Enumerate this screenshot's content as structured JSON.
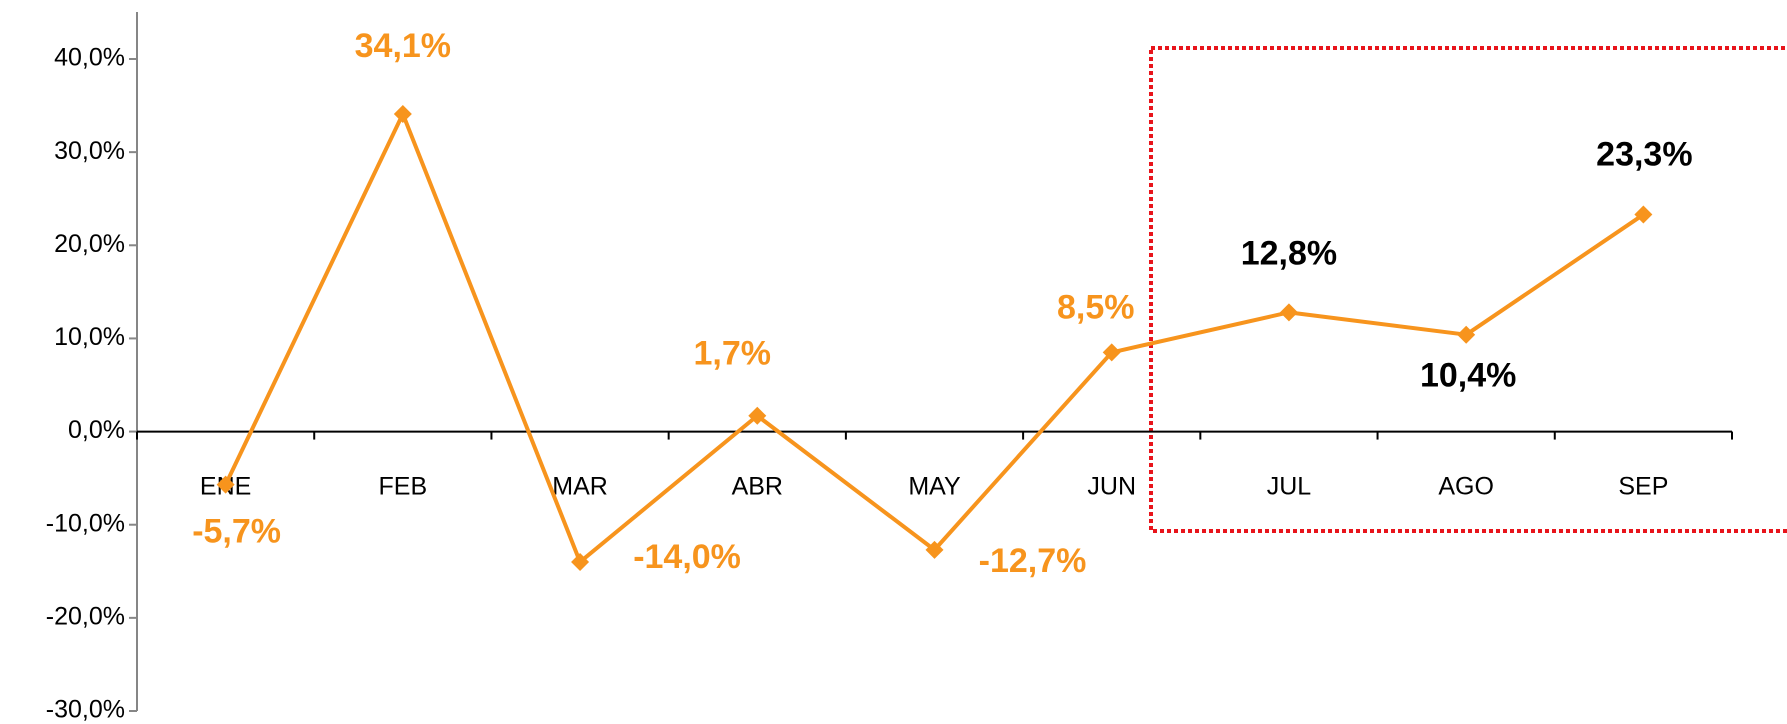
{
  "chart_data": {
    "type": "line",
    "categories": [
      "ENE",
      "FEB",
      "MAR",
      "ABR",
      "MAY",
      "JUN",
      "JUL",
      "AGO",
      "SEP"
    ],
    "series": [
      {
        "color": "#f7941d",
        "values": [
          -5.7,
          34.1,
          -14.0,
          1.7,
          -12.7,
          8.5,
          12.8,
          10.4,
          23.3
        ],
        "value_labels": [
          "-5,7%",
          "34,1%",
          "-14,0%",
          "1,7%",
          "-12,7%",
          "8,5%",
          "12,8%",
          "10,4%",
          "23,3%"
        ],
        "value_label_colors": [
          "#f7941d",
          "#f7941d",
          "#f7941d",
          "#f7941d",
          "#f7941d",
          "#f7941d",
          "#000000",
          "#000000",
          "#000000"
        ]
      }
    ],
    "ylim": [
      -30,
      40
    ],
    "yticks": [
      {
        "value": -30,
        "label": "-30,0%"
      },
      {
        "value": -20,
        "label": "-20,0%"
      },
      {
        "value": -10,
        "label": "-10,0%"
      },
      {
        "value": 0,
        "label": "0,0%"
      },
      {
        "value": 10,
        "label": "10,0%"
      },
      {
        "value": 20,
        "label": "20,0%"
      },
      {
        "value": 30,
        "label": "30,0%"
      },
      {
        "value": 40,
        "label": "40,0%"
      }
    ],
    "grid": false
  }
}
